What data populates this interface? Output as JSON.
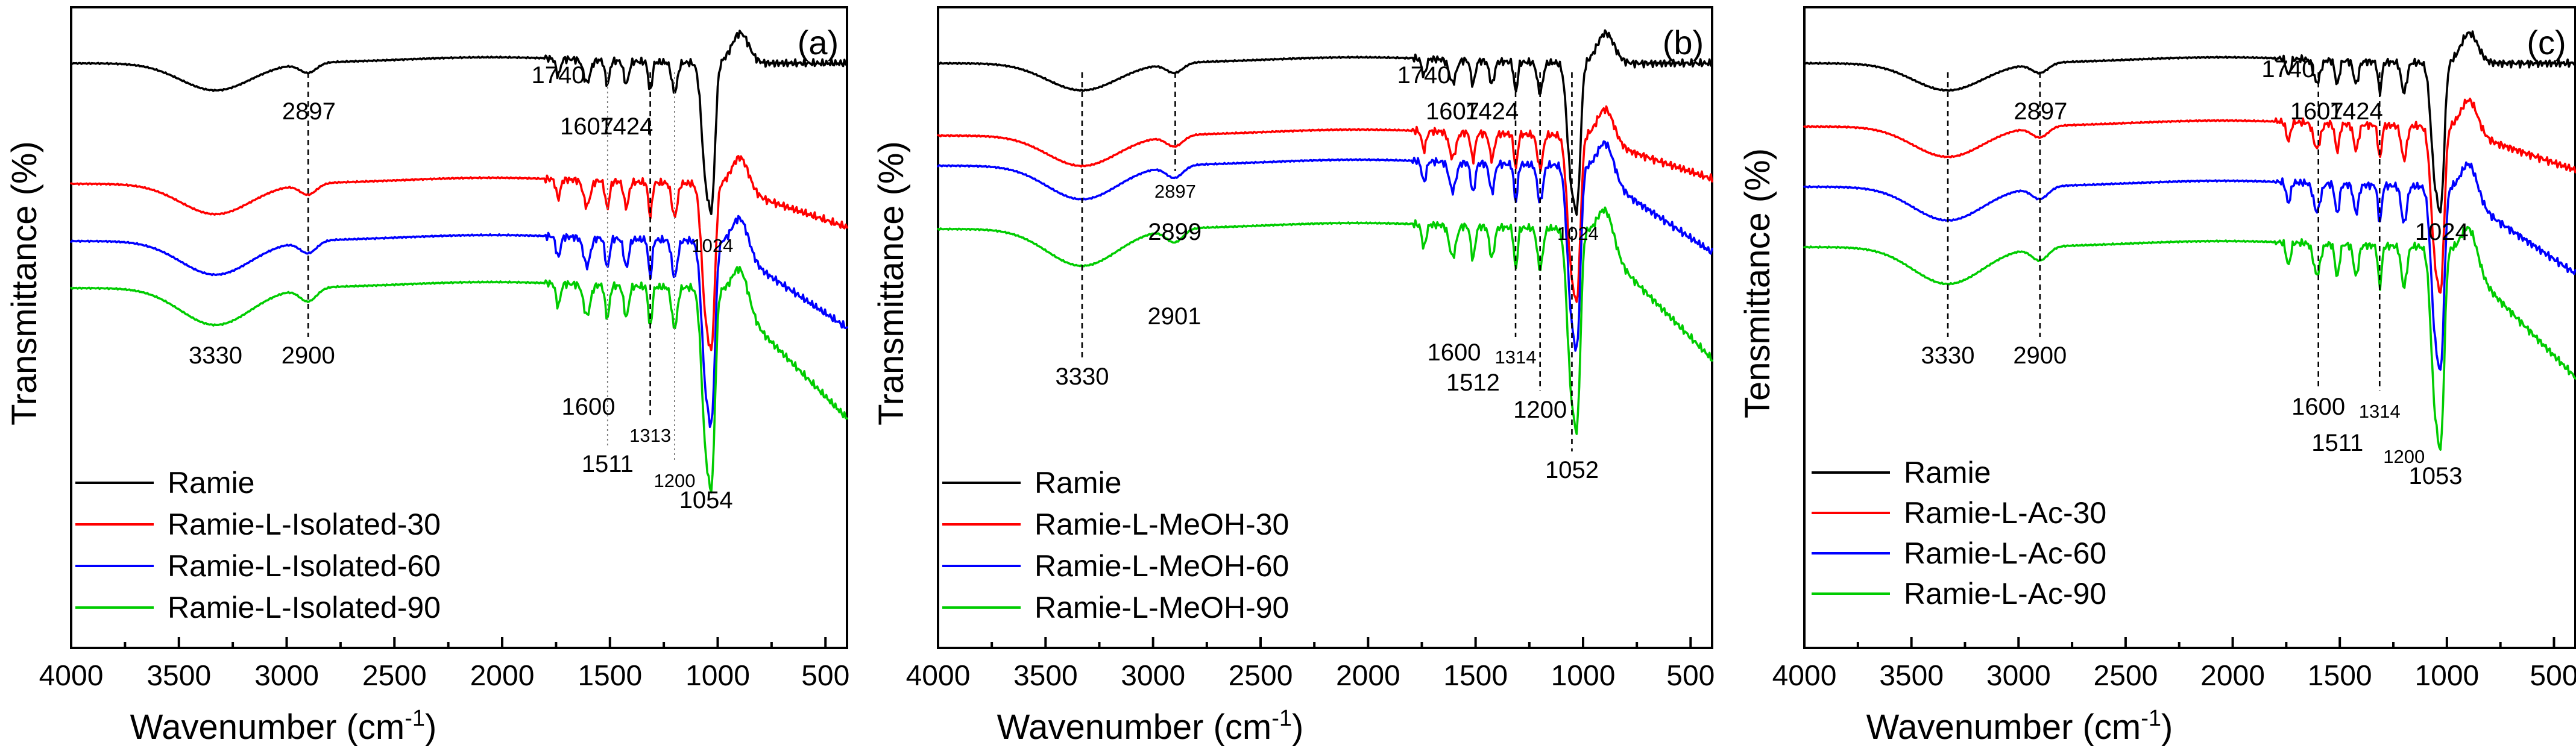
{
  "chart_data": [
    {
      "type": "line",
      "panel_label": "(a)",
      "xlabel": "Wavenumber (cm-1)",
      "ylabel": "Transmittance (%)",
      "xlim": [
        4000,
        400
      ],
      "x_ticks": [
        4000,
        3500,
        3000,
        2500,
        2000,
        1500,
        1000,
        500
      ],
      "series": [
        {
          "name": "Ramie",
          "color": "#000000"
        },
        {
          "name": "Ramie-L-Isolated-30",
          "color": "#ff0000"
        },
        {
          "name": "Ramie-L-Isolated-60",
          "color": "#0000ff"
        },
        {
          "name": "Ramie-L-Isolated-90",
          "color": "#00cc00"
        }
      ],
      "annotations": [
        {
          "text": "2897",
          "x": 2897
        },
        {
          "text": "1740",
          "x": 1740
        },
        {
          "text": "1607",
          "x": 1607
        },
        {
          "text": "1424",
          "x": 1424
        },
        {
          "text": "1024",
          "x": 1024
        },
        {
          "text": "3330",
          "x": 3330
        },
        {
          "text": "2900",
          "x": 2900
        },
        {
          "text": "1600",
          "x": 1600
        },
        {
          "text": "1313",
          "x": 1313
        },
        {
          "text": "1511",
          "x": 1511
        },
        {
          "text": "1200",
          "x": 1200
        },
        {
          "text": "1054",
          "x": 1054
        }
      ]
    },
    {
      "type": "line",
      "panel_label": "(b)",
      "xlabel": "Wavenumber (cm-1)",
      "ylabel": "Transmittance (%)",
      "xlim": [
        4000,
        400
      ],
      "x_ticks": [
        4000,
        3500,
        3000,
        2500,
        2000,
        1500,
        1000,
        500
      ],
      "series": [
        {
          "name": "Ramie",
          "color": "#000000"
        },
        {
          "name": "Ramie-L-MeOH-30",
          "color": "#ff0000"
        },
        {
          "name": "Ramie-L-MeOH-60",
          "color": "#0000ff"
        },
        {
          "name": "Ramie-L-MeOH-90",
          "color": "#00cc00"
        }
      ],
      "annotations": [
        {
          "text": "1740",
          "x": 1740
        },
        {
          "text": "1607",
          "x": 1607
        },
        {
          "text": "1424",
          "x": 1424
        },
        {
          "text": "2897",
          "x": 2897
        },
        {
          "text": "2899",
          "x": 2899
        },
        {
          "text": "1024",
          "x": 1024
        },
        {
          "text": "2901",
          "x": 2901
        },
        {
          "text": "1600",
          "x": 1600
        },
        {
          "text": "1314",
          "x": 1314
        },
        {
          "text": "3330",
          "x": 3330
        },
        {
          "text": "1512",
          "x": 1512
        },
        {
          "text": "1200",
          "x": 1200
        },
        {
          "text": "1052",
          "x": 1052
        }
      ]
    },
    {
      "type": "line",
      "panel_label": "(c)",
      "xlabel": "Wavenumber (cm-1)",
      "ylabel": "Tensmittance (%)",
      "xlim": [
        4000,
        400
      ],
      "x_ticks": [
        4000,
        3500,
        3000,
        2500,
        2000,
        1500,
        1000,
        500
      ],
      "series": [
        {
          "name": "Ramie",
          "color": "#000000"
        },
        {
          "name": "Ramie-L-Ac-30",
          "color": "#ff0000"
        },
        {
          "name": "Ramie-L-Ac-60",
          "color": "#0000ff"
        },
        {
          "name": "Ramie-L-Ac-90",
          "color": "#00cc00"
        }
      ],
      "annotations": [
        {
          "text": "1740",
          "x": 1740
        },
        {
          "text": "2897",
          "x": 2897
        },
        {
          "text": "1607",
          "x": 1607
        },
        {
          "text": "1424",
          "x": 1424
        },
        {
          "text": "1024",
          "x": 1024
        },
        {
          "text": "3330",
          "x": 3330
        },
        {
          "text": "2900",
          "x": 2900
        },
        {
          "text": "1600",
          "x": 1600
        },
        {
          "text": "1314",
          "x": 1314
        },
        {
          "text": "1511",
          "x": 1511
        },
        {
          "text": "1200",
          "x": 1200
        },
        {
          "text": "1053",
          "x": 1053
        }
      ]
    }
  ]
}
